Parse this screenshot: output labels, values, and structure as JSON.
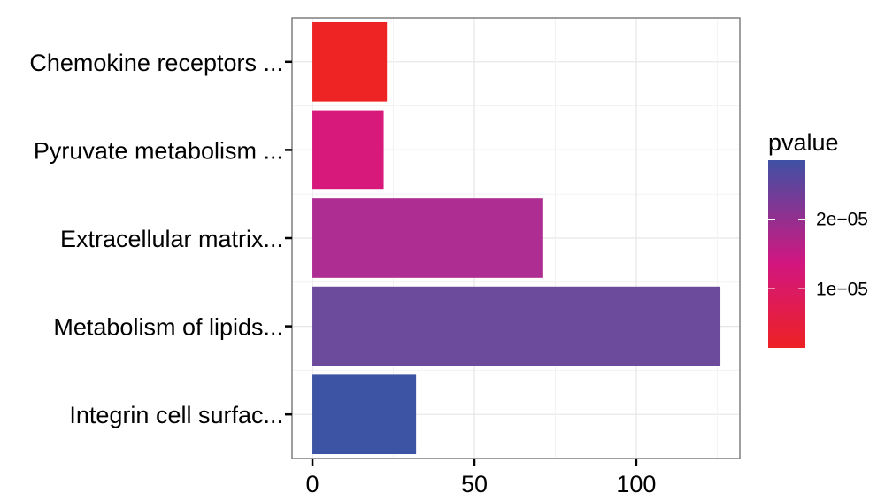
{
  "chart_data": {
    "type": "bar",
    "orientation": "horizontal",
    "categories": [
      "Chemokine receptors ...",
      "Pyruvate metabolism ...",
      "Extracellular matrix...",
      "Metabolism of lipids...",
      "Integrin cell surfac..."
    ],
    "values": [
      23,
      22,
      71,
      126,
      32
    ],
    "pvalues": [
      1.5e-06,
      9.5e-06,
      1.7e-05,
      2.2e-05,
      2.8e-05
    ],
    "colors": [
      "#ee2424",
      "#d6197b",
      "#ae2d93",
      "#6c4b9d",
      "#3c54a3"
    ],
    "x_ticks": [
      0,
      50,
      100
    ],
    "x_tick_labels": [
      "0",
      "50",
      "100"
    ],
    "xlim": [
      -6.3,
      132
    ],
    "grid": true,
    "legend": {
      "title": "pvalue",
      "position": "right",
      "tick_values": [
        1e-05,
        2e-05
      ],
      "tick_labels": [
        "1e−05",
        "2e−05"
      ],
      "range": [
        1.5e-06,
        2.85e-05
      ],
      "low_color": "#ee2124",
      "mid_color": "#d2167f",
      "high_color": "#3f51a4"
    }
  }
}
